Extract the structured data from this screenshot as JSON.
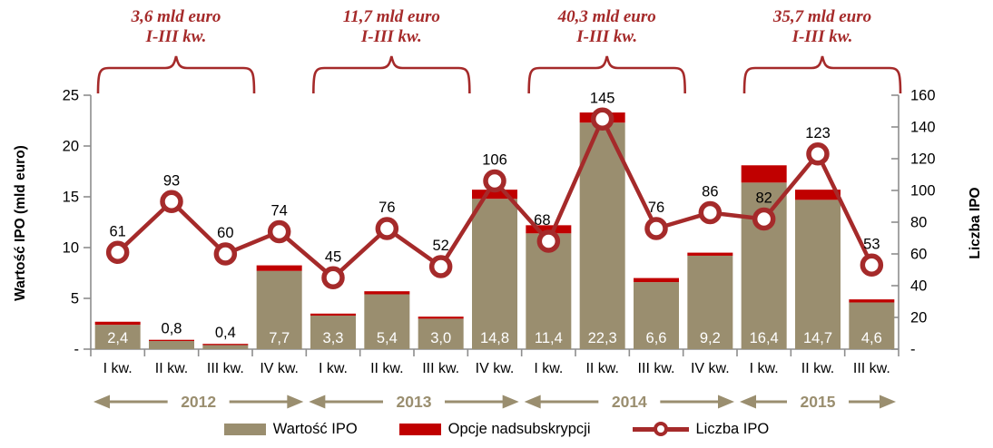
{
  "chart_data": {
    "type": "combo-bar-line",
    "categories": [
      "I kw.",
      "II kw.",
      "III kw.",
      "IV kw.",
      "I kw.",
      "II kw.",
      "III kw.",
      "IV kw.",
      "I kw.",
      "II kw.",
      "III kw.",
      "IV kw.",
      "I kw.",
      "II kw.",
      "III kw."
    ],
    "years": [
      {
        "label": "2012",
        "quarters": [
          0,
          3
        ]
      },
      {
        "label": "2013",
        "quarters": [
          4,
          7
        ]
      },
      {
        "label": "2014",
        "quarters": [
          8,
          11
        ]
      },
      {
        "label": "2015",
        "quarters": [
          12,
          14
        ]
      }
    ],
    "series": [
      {
        "name": "Wartość IPO",
        "type": "bar",
        "axis": "left",
        "color": "#9A8E6F",
        "values": [
          2.4,
          0.8,
          0.4,
          7.7,
          3.3,
          5.4,
          3.0,
          14.8,
          11.4,
          22.3,
          6.6,
          9.2,
          16.4,
          14.7,
          4.6
        ],
        "labels": [
          "2,4",
          "0,8",
          "0,4",
          "7,7",
          "3,3",
          "5,4",
          "3,0",
          "14,8",
          "11,4",
          "22,3",
          "6,6",
          "9,2",
          "16,4",
          "14,7",
          "4,6"
        ]
      },
      {
        "name": "Opcje nadsubskrypcji",
        "type": "bar-segment",
        "axis": "left",
        "color": "#C00000",
        "values": [
          0.3,
          0.12,
          0.12,
          0.55,
          0.2,
          0.3,
          0.2,
          0.9,
          0.8,
          1.0,
          0.4,
          0.3,
          1.7,
          1.0,
          0.3
        ]
      },
      {
        "name": "Liczba IPO",
        "type": "line",
        "axis": "right",
        "color": "#A52A2A",
        "marker": "circle",
        "marker_fill": "#FFFFFF",
        "values": [
          61,
          93,
          60,
          74,
          45,
          76,
          52,
          106,
          68,
          145,
          76,
          86,
          82,
          123,
          53
        ],
        "labels": [
          "61",
          "93",
          "60",
          "74",
          "45",
          "76",
          "52",
          "106",
          "68",
          "145",
          "76",
          "86",
          "82",
          "123",
          "53"
        ]
      }
    ],
    "left_axis": {
      "title": "Wartość IPO (mld euro)",
      "min": 0,
      "max": 25,
      "tick_step": 5,
      "zero_label": "-"
    },
    "right_axis": {
      "title": "Liczba IPO",
      "min": 0,
      "max": 160,
      "tick_step": 20,
      "zero_label": "-"
    },
    "annotations": [
      {
        "line1": "3,6 mld  euro",
        "line2": "I-III kw.",
        "quarters": [
          0,
          2
        ]
      },
      {
        "line1": "11,7 mld euro",
        "line2": "I-III kw.",
        "quarters": [
          4,
          6
        ]
      },
      {
        "line1": "40,3 mld euro",
        "line2": "I-III kw.",
        "quarters": [
          8,
          10
        ]
      },
      {
        "line1": "35,7 mld euro",
        "line2": "I-III kw.",
        "quarters": [
          12,
          14
        ]
      }
    ],
    "colors": {
      "bar": "#9A8E6F",
      "overallotment": "#C00000",
      "line": "#A52A2A",
      "annotation": "#A52A2A",
      "axis": "#8E8E8E",
      "year_arrow": "#9A8E6F",
      "bar_label": "#FFFFFF",
      "text": "#000000"
    },
    "layout": {
      "grid": false,
      "legend_position": "bottom"
    }
  },
  "legend": {
    "items": [
      {
        "label": "Wartość IPO"
      },
      {
        "label": "Opcje nadsubskrypcji"
      },
      {
        "label": "Liczba IPO"
      }
    ]
  }
}
